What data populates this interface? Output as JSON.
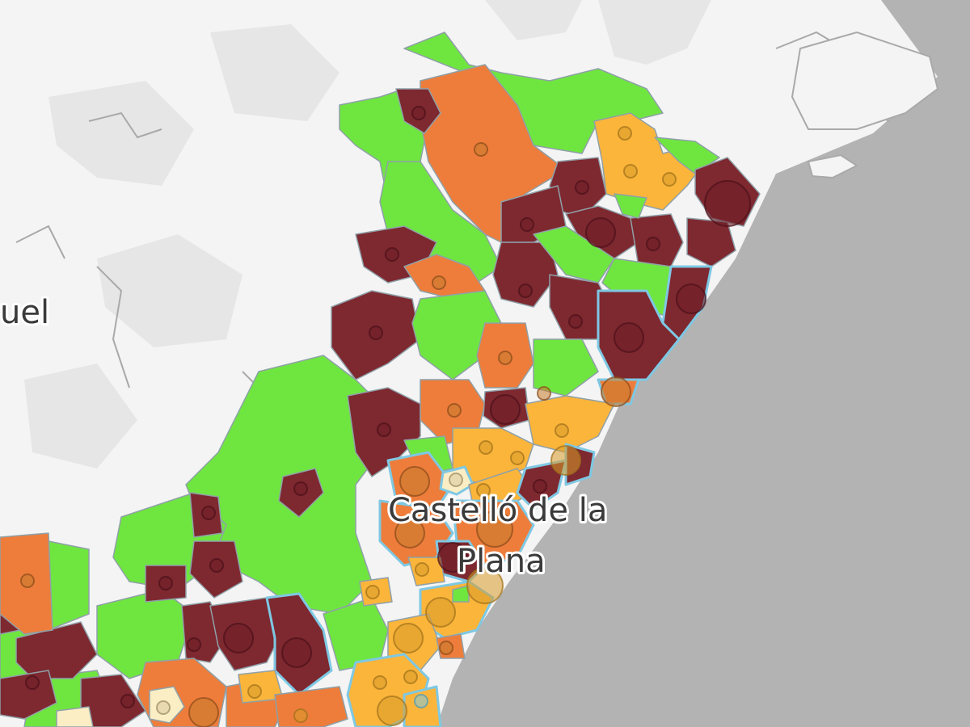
{
  "map": {
    "labels": {
      "teruel_partial": "uel",
      "castellon_line1": "Castelló de la",
      "castellon_line2": "Plana"
    },
    "colors": {
      "land": "#f4f4f4",
      "sea": "#b3b3b3",
      "relief": "#e2e2e2",
      "green": "#6fe63f",
      "orange": "#ee7d3b",
      "yellow": "#fbb53b",
      "darkred": "#7e2830",
      "cream": "#fbeec5",
      "boundary": "#8fa0a8",
      "coastal_boundary": "#7ec8e3"
    },
    "legend_levels": [
      "green",
      "yellow",
      "orange",
      "darkred",
      "cream"
    ]
  }
}
